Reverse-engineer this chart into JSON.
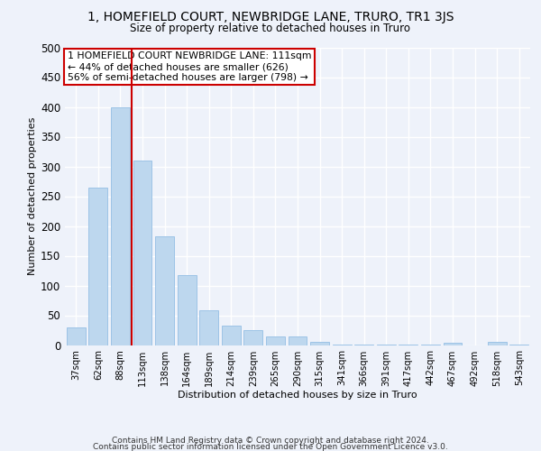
{
  "title": "1, HOMEFIELD COURT, NEWBRIDGE LANE, TRURO, TR1 3JS",
  "subtitle": "Size of property relative to detached houses in Truro",
  "xlabel": "Distribution of detached houses by size in Truro",
  "ylabel": "Number of detached properties",
  "bar_labels": [
    "37sqm",
    "62sqm",
    "88sqm",
    "113sqm",
    "138sqm",
    "164sqm",
    "189sqm",
    "214sqm",
    "239sqm",
    "265sqm",
    "290sqm",
    "315sqm",
    "341sqm",
    "366sqm",
    "391sqm",
    "417sqm",
    "442sqm",
    "467sqm",
    "492sqm",
    "518sqm",
    "543sqm"
  ],
  "bar_values": [
    30,
    265,
    400,
    310,
    182,
    117,
    58,
    32,
    25,
    15,
    15,
    5,
    1,
    1,
    1,
    1,
    1,
    4,
    0,
    5,
    1
  ],
  "bar_color": "#bdd7ee",
  "bar_edge_color": "#9dc3e6",
  "red_line_x": 2.5,
  "annotation_text": "1 HOMEFIELD COURT NEWBRIDGE LANE: 111sqm\n← 44% of detached houses are smaller (626)\n56% of semi-detached houses are larger (798) →",
  "annotation_box_color": "#ffffff",
  "annotation_box_edge_color": "#cc0000",
  "ylim": [
    0,
    500
  ],
  "yticks": [
    0,
    50,
    100,
    150,
    200,
    250,
    300,
    350,
    400,
    450,
    500
  ],
  "background_color": "#eef2fa",
  "grid_color": "#ffffff",
  "footer_line1": "Contains HM Land Registry data © Crown copyright and database right 2024.",
  "footer_line2": "Contains public sector information licensed under the Open Government Licence v3.0."
}
